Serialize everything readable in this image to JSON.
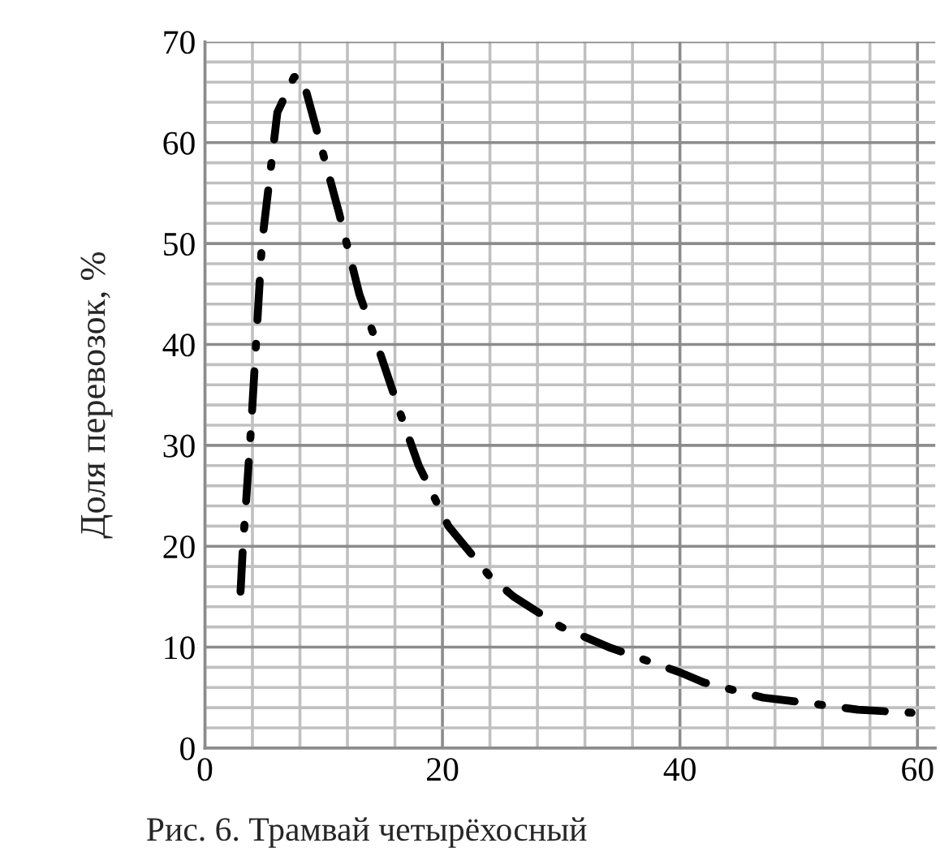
{
  "chart_data": {
    "type": "line",
    "title": "Рис. 6. Трамвай четырёхосный",
    "ylabel": "Доля перевозок, %",
    "x": [
      3,
      3.2,
      3.5,
      3.9,
      4.3,
      4.8,
      5.3,
      6.1,
      7.5,
      8.2,
      9.7,
      11.3,
      13,
      14.5,
      16.5,
      18,
      20.5,
      24,
      26,
      30,
      34,
      40,
      42,
      47,
      50.5,
      55,
      59.5
    ],
    "series": [
      {
        "color": "#000000",
        "values": [
          15.5,
          20,
          25,
          32,
          40,
          50,
          55,
          63,
          66.5,
          66.5,
          60,
          53,
          45,
          40,
          33,
          28,
          22,
          17,
          15,
          12,
          10,
          7.5,
          6.5,
          5,
          4.5,
          3.8,
          3.5
        ]
      }
    ],
    "xlim": [
      0,
      61.5
    ],
    "ylim": [
      0,
      70
    ],
    "xticks": [
      0,
      {
        "value": 4,
        "label": null
      },
      {
        "value": 8,
        "label": null
      },
      {
        "value": 12,
        "label": null
      },
      {
        "value": 16,
        "label": null
      },
      20,
      {
        "value": 24,
        "label": null
      },
      {
        "value": 28,
        "label": null
      },
      {
        "value": 32,
        "label": null
      },
      {
        "value": 36,
        "label": null
      },
      40,
      {
        "value": 44,
        "label": null
      },
      {
        "value": 48,
        "label": null
      },
      {
        "value": 52,
        "label": null
      },
      {
        "value": 56,
        "label": null
      },
      60
    ],
    "yticks": [
      0,
      {
        "value": 2,
        "label": null
      },
      {
        "value": 4,
        "label": null
      },
      {
        "value": 6,
        "label": null
      },
      {
        "value": 8,
        "label": null
      },
      10,
      {
        "value": 12,
        "label": null
      },
      {
        "value": 14,
        "label": null
      },
      {
        "value": 16,
        "label": null
      },
      {
        "value": 18,
        "label": null
      },
      20,
      {
        "value": 22,
        "label": null
      },
      {
        "value": 24,
        "label": null
      },
      {
        "value": 26,
        "label": null
      },
      {
        "value": 28,
        "label": null
      },
      30,
      {
        "value": 32,
        "label": null
      },
      {
        "value": 34,
        "label": null
      },
      {
        "value": 36,
        "label": null
      },
      {
        "value": 38,
        "label": null
      },
      40,
      {
        "value": 42,
        "label": null
      },
      {
        "value": 44,
        "label": null
      },
      {
        "value": 46,
        "label": null
      },
      {
        "value": 48,
        "label": null
      },
      50,
      {
        "value": 52,
        "label": null
      },
      {
        "value": 54,
        "label": null
      },
      {
        "value": 56,
        "label": null
      },
      {
        "value": 58,
        "label": null
      },
      60,
      {
        "value": 62,
        "label": null
      },
      {
        "value": 64,
        "label": null
      },
      {
        "value": 66,
        "label": null
      },
      {
        "value": 68,
        "label": null
      },
      70
    ],
    "grid": true,
    "legend": false,
    "marker": "none",
    "line_style": "dashed"
  }
}
